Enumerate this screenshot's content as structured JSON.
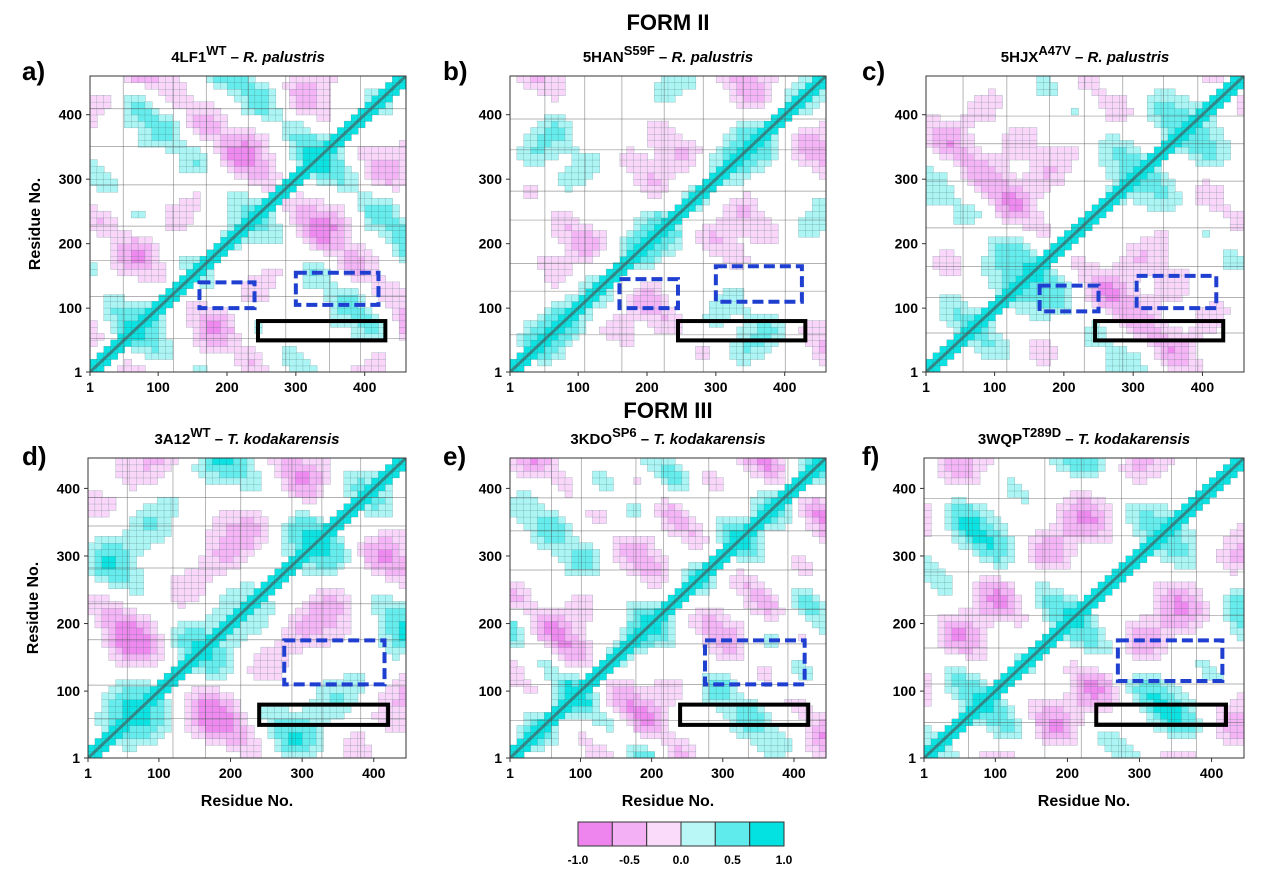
{
  "figure": {
    "form_labels": [
      "FORM II",
      "FORM III"
    ],
    "x_axis_label": "Residue No.",
    "y_axis_label": "Residue No.",
    "colors": {
      "negative": "#ee82ee",
      "positive": "#00e0e0",
      "contour": "#3d6b6b",
      "box_blue": "#1f3fd0",
      "box_black": "#000000"
    }
  },
  "chart_data": [
    {
      "type": "heatmap",
      "panel": "a)",
      "title_main": "4LF1",
      "title_sup": "WT",
      "organism": "R. palustris",
      "xlim": [
        1,
        460
      ],
      "ylim": [
        1,
        460
      ],
      "x_ticks": [
        "1",
        "100",
        "200",
        "300",
        "400"
      ],
      "y_ticks": [
        "1",
        "100",
        "200",
        "300",
        "400"
      ],
      "blue_boxes": [
        {
          "x": [
            160,
            240
          ],
          "y": [
            100,
            140
          ]
        },
        {
          "x": [
            300,
            420
          ],
          "y": [
            105,
            155
          ]
        }
      ],
      "black_boxes": [
        {
          "x": [
            245,
            430
          ],
          "y": [
            50,
            80
          ]
        }
      ],
      "seed": 11
    },
    {
      "type": "heatmap",
      "panel": "b)",
      "title_main": "5HAN",
      "title_sup": "S59F",
      "organism": "R. palustris",
      "xlim": [
        1,
        460
      ],
      "ylim": [
        1,
        460
      ],
      "x_ticks": [
        "1",
        "100",
        "200",
        "300",
        "400"
      ],
      "y_ticks": [
        "1",
        "100",
        "200",
        "300",
        "400"
      ],
      "blue_boxes": [
        {
          "x": [
            160,
            245
          ],
          "y": [
            100,
            145
          ]
        },
        {
          "x": [
            300,
            425
          ],
          "y": [
            110,
            165
          ]
        }
      ],
      "black_boxes": [
        {
          "x": [
            245,
            430
          ],
          "y": [
            50,
            80
          ]
        }
      ],
      "seed": 23
    },
    {
      "type": "heatmap",
      "panel": "c)",
      "title_main": "5HJX",
      "title_sup": "A47V",
      "organism": "R. palustris",
      "xlim": [
        1,
        460
      ],
      "ylim": [
        1,
        460
      ],
      "x_ticks": [
        "1",
        "100",
        "200",
        "300",
        "400"
      ],
      "y_ticks": [
        "1",
        "100",
        "200",
        "300",
        "400"
      ],
      "blue_boxes": [
        {
          "x": [
            165,
            250
          ],
          "y": [
            95,
            135
          ]
        },
        {
          "x": [
            305,
            420
          ],
          "y": [
            100,
            150
          ]
        }
      ],
      "black_boxes": [
        {
          "x": [
            245,
            430
          ],
          "y": [
            50,
            80
          ]
        }
      ],
      "seed": 37
    },
    {
      "type": "heatmap",
      "panel": "d)",
      "title_main": "3A12",
      "title_sup": "WT",
      "organism": "T. kodakarensis",
      "xlim": [
        1,
        445
      ],
      "ylim": [
        1,
        445
      ],
      "x_ticks": [
        "1",
        "100",
        "200",
        "300",
        "400"
      ],
      "y_ticks": [
        "1",
        "100",
        "200",
        "300",
        "400"
      ],
      "blue_boxes": [
        {
          "x": [
            275,
            415
          ],
          "y": [
            110,
            175
          ]
        }
      ],
      "black_boxes": [
        {
          "x": [
            240,
            420
          ],
          "y": [
            50,
            80
          ]
        }
      ],
      "seed": 53
    },
    {
      "type": "heatmap",
      "panel": "e)",
      "title_main": "3KDO",
      "title_sup": "SP6",
      "organism": "T. kodakarensis",
      "xlim": [
        1,
        445
      ],
      "ylim": [
        1,
        445
      ],
      "x_ticks": [
        "1",
        "100",
        "200",
        "300",
        "400"
      ],
      "y_ticks": [
        "1",
        "100",
        "200",
        "300",
        "400"
      ],
      "blue_boxes": [
        {
          "x": [
            275,
            415
          ],
          "y": [
            110,
            175
          ]
        }
      ],
      "black_boxes": [
        {
          "x": [
            240,
            420
          ],
          "y": [
            50,
            80
          ]
        }
      ],
      "seed": 71
    },
    {
      "type": "heatmap",
      "panel": "f)",
      "title_main": "3WQP",
      "title_sup": "T289D",
      "organism": "T. kodakarensis",
      "xlim": [
        1,
        445
      ],
      "ylim": [
        1,
        445
      ],
      "x_ticks": [
        "1",
        "100",
        "200",
        "300",
        "400"
      ],
      "y_ticks": [
        "1",
        "100",
        "200",
        "300",
        "400"
      ],
      "blue_boxes": [
        {
          "x": [
            270,
            415
          ],
          "y": [
            115,
            175
          ]
        }
      ],
      "black_boxes": [
        {
          "x": [
            240,
            420
          ],
          "y": [
            50,
            80
          ]
        }
      ],
      "seed": 89
    },
    {
      "type": "colorbar",
      "range": [
        -1.0,
        1.0
      ],
      "tick_labels": [
        "-1.0",
        "-0.5",
        "0.0",
        "0.5",
        "1.0"
      ],
      "bins": [
        -1.0,
        -0.667,
        -0.333,
        0.0,
        0.333,
        0.667,
        1.0
      ]
    }
  ]
}
